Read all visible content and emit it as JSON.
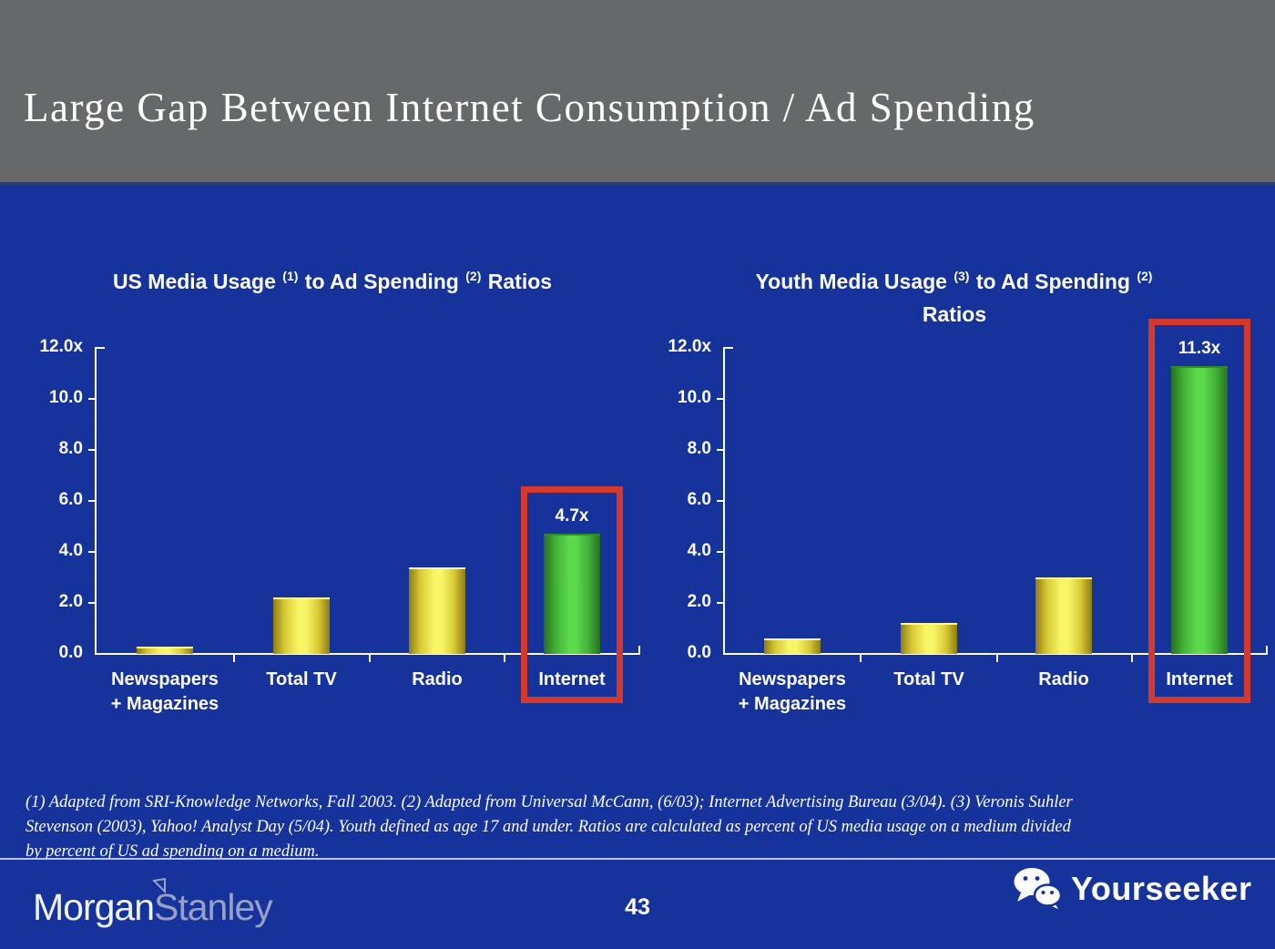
{
  "slide": {
    "title": "Large Gap Between Internet Consumption / Ad Spending"
  },
  "chart_data": [
    {
      "type": "bar",
      "title_plain": "US Media Usage (1) to Ad Spending (2) Ratios",
      "title_lines": [
        [
          {
            "t": "US Media Usage "
          },
          {
            "sup": "(1)"
          },
          {
            "t": " to Ad Spending "
          },
          {
            "sup": "(2)"
          },
          {
            "t": " Ratios"
          }
        ]
      ],
      "categories": [
        [
          "Newspapers",
          "+ Magazines"
        ],
        [
          "Total TV"
        ],
        [
          "Radio"
        ],
        [
          "Internet"
        ]
      ],
      "values": [
        0.3,
        2.2,
        3.4,
        4.7
      ],
      "bar_colors": [
        "yellow",
        "yellow",
        "yellow",
        "green"
      ],
      "highlight_index": 3,
      "highlight_label": "4.7x",
      "xlabel": "",
      "ylabel": "",
      "ylim": [
        0,
        12
      ],
      "yticks": [
        {
          "label": "0.0",
          "value": 0
        },
        {
          "label": "2.0",
          "value": 2
        },
        {
          "label": "4.0",
          "value": 4
        },
        {
          "label": "6.0",
          "value": 6
        },
        {
          "label": "8.0",
          "value": 8
        },
        {
          "label": "10.0",
          "value": 10
        },
        {
          "label": "12.0x",
          "value": 12
        }
      ],
      "grid": false,
      "legend": false
    },
    {
      "type": "bar",
      "title_plain": "Youth Media Usage (3) to Ad Spending (2) Ratios",
      "title_lines": [
        [
          {
            "t": "Youth Media Usage "
          },
          {
            "sup": "(3)"
          },
          {
            "t": " to Ad Spending "
          },
          {
            "sup": "(2)"
          }
        ],
        [
          {
            "t": "Ratios"
          }
        ]
      ],
      "categories": [
        [
          "Newspapers",
          "+ Magazines"
        ],
        [
          "Total TV"
        ],
        [
          "Radio"
        ],
        [
          "Internet"
        ]
      ],
      "values": [
        0.6,
        1.2,
        3.0,
        11.3
      ],
      "bar_colors": [
        "yellow",
        "yellow",
        "yellow",
        "green"
      ],
      "highlight_index": 3,
      "highlight_label": "11.3x",
      "xlabel": "",
      "ylabel": "",
      "ylim": [
        0,
        12
      ],
      "yticks": [
        {
          "label": "0.0",
          "value": 0
        },
        {
          "label": "2.0",
          "value": 2
        },
        {
          "label": "4.0",
          "value": 4
        },
        {
          "label": "6.0",
          "value": 6
        },
        {
          "label": "8.0",
          "value": 8
        },
        {
          "label": "10.0",
          "value": 10
        },
        {
          "label": "12.0x",
          "value": 12
        }
      ],
      "grid": false,
      "legend": false
    }
  ],
  "footnote": {
    "lines": [
      "(1) Adapted from SRI-Knowledge Networks, Fall 2003.  (2) Adapted from Universal McCann, (6/03); Internet Advertising Bureau (3/04). (3) Veronis Suhler",
      "Stevenson (2003), Yahoo! Analyst Day (5/04).  Youth defined as age 17 and under.  Ratios are calculated as percent of US media usage on a medium divided",
      "by percent of US ad spending on a medium."
    ]
  },
  "footer": {
    "page_number": "43",
    "brand_left": {
      "part1": "Morgan",
      "part2": "Stanley"
    },
    "brand_right": "Yourseeker"
  },
  "colors": {
    "background_blue": "#15339b",
    "header_gray": "#67686a",
    "bar_yellow": "#f8f666",
    "bar_green": "#5cd94c",
    "highlight_red": "#d5392b",
    "axis_white": "#ffffff",
    "stanley_gray_blue": "#98a1c4"
  }
}
